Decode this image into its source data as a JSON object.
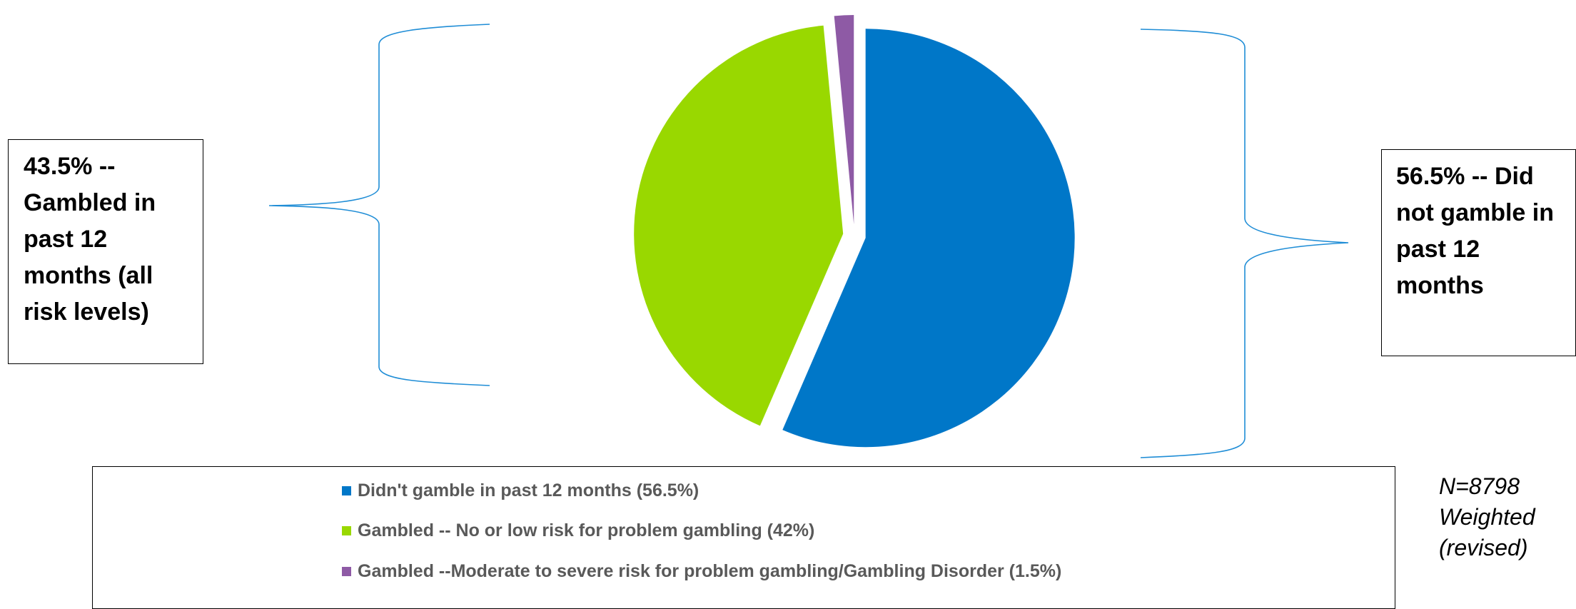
{
  "callouts": {
    "left": "43.5% -- Gambled in past 12 months (all risk levels)",
    "right": "56.5% -- Did not gamble in past 12 months"
  },
  "chart_data": {
    "type": "pie",
    "exploded": true,
    "slices": [
      {
        "label": "Didn't gamble in past 12 months (56.5%)",
        "value": 56.5,
        "color": "#0077C8"
      },
      {
        "label": "Gambled -- No or low risk for problem gambling (42%)",
        "value": 42,
        "color": "#99D800"
      },
      {
        "label": "Gambled --Moderate to severe risk for problem gambling/Gambling Disorder (1.5%)",
        "value": 1.5,
        "color": "#8E5AA5"
      }
    ],
    "legend_position": "bottom"
  },
  "note": {
    "line1": "N=8798",
    "line2": "Weighted",
    "line3": "(revised)"
  }
}
